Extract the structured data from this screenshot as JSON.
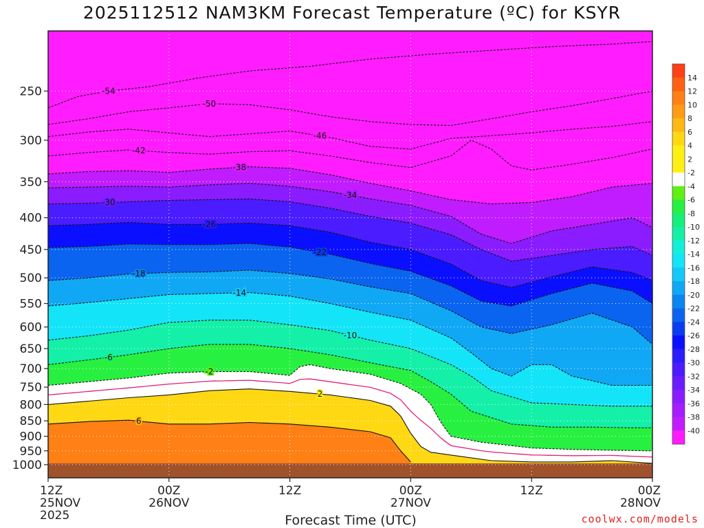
{
  "chart_data": {
    "type": "heatmap",
    "title": "2025112512 NAM3KM Forecast Temperature (ºC) for KSYR",
    "xlabel": "Forecast Time (UTC)",
    "ylabel": "",
    "credit": "coolwx.com/models",
    "y_axis": {
      "quantity": "pressure (hPa)",
      "log_scale": true,
      "range": [
        1050,
        200
      ],
      "ticks": [
        250,
        300,
        350,
        400,
        450,
        500,
        550,
        600,
        650,
        700,
        750,
        800,
        850,
        900,
        950,
        1000
      ]
    },
    "x_axis": {
      "range_hours": [
        0,
        60
      ],
      "ticks": [
        {
          "hour": 0,
          "lines": [
            "12Z",
            "25NOV",
            "2025"
          ]
        },
        {
          "hour": 12,
          "lines": [
            "00Z",
            "26NOV"
          ]
        },
        {
          "hour": 24,
          "lines": [
            "12Z"
          ]
        },
        {
          "hour": 36,
          "lines": [
            "00Z",
            "27NOV"
          ]
        },
        {
          "hour": 48,
          "lines": [
            "12Z"
          ]
        },
        {
          "hour": 60,
          "lines": [
            "00Z",
            "28NOV"
          ]
        }
      ]
    },
    "grid": true,
    "colorbar": {
      "placement": "right",
      "labels": [
        "14",
        "12",
        "10",
        "8",
        "6",
        "4",
        "2",
        "-2",
        "-4",
        "-6",
        "-8",
        "-10",
        "-12",
        "-14",
        "-16",
        "-18",
        "-20",
        "-22",
        "-24",
        "-26",
        "-28",
        "-30",
        "-32",
        "-34",
        "-36",
        "-38",
        "-40"
      ]
    },
    "contours_C": [
      -54,
      -50,
      -46,
      -42,
      -38,
      -34,
      -30,
      -26,
      -22,
      -18,
      -14,
      -10,
      -6,
      -2,
      2,
      6
    ],
    "isotherms": [
      {
        "temp": -54,
        "p": [
          [
            0,
            266
          ],
          [
            3,
            255
          ],
          [
            6,
            250
          ],
          [
            10,
            246
          ],
          [
            15,
            238
          ],
          [
            20,
            232
          ],
          [
            26,
            228
          ],
          [
            32,
            222
          ],
          [
            38,
            218
          ],
          [
            44,
            215
          ],
          [
            50,
            212
          ],
          [
            56,
            210
          ],
          [
            60,
            208
          ]
        ]
      },
      {
        "temp": -50,
        "p": [
          [
            0,
            283
          ],
          [
            4,
            277
          ],
          [
            8,
            270
          ],
          [
            12,
            266
          ],
          [
            16,
            262
          ],
          [
            20,
            263
          ],
          [
            24,
            268
          ],
          [
            28,
            275
          ],
          [
            32,
            280
          ],
          [
            36,
            283
          ],
          [
            40,
            284
          ],
          [
            44,
            277
          ],
          [
            48,
            270
          ],
          [
            52,
            264
          ],
          [
            56,
            257
          ],
          [
            60,
            250
          ]
        ]
      },
      {
        "temp": -46,
        "p": [
          [
            0,
            296
          ],
          [
            4,
            291
          ],
          [
            8,
            288
          ],
          [
            12,
            292
          ],
          [
            16,
            296
          ],
          [
            20,
            293
          ],
          [
            24,
            290
          ],
          [
            28,
            297
          ],
          [
            32,
            307
          ],
          [
            36,
            310
          ],
          [
            38,
            304
          ],
          [
            40,
            298
          ],
          [
            44,
            295
          ],
          [
            48,
            292
          ],
          [
            52,
            288
          ],
          [
            56,
            285
          ],
          [
            60,
            280
          ]
        ]
      },
      {
        "temp": -42,
        "p": [
          [
            0,
            318
          ],
          [
            4,
            314
          ],
          [
            8,
            311
          ],
          [
            12,
            314
          ],
          [
            16,
            316
          ],
          [
            20,
            313
          ],
          [
            24,
            312
          ],
          [
            28,
            318
          ],
          [
            32,
            326
          ],
          [
            36,
            332
          ],
          [
            40,
            318
          ],
          [
            42,
            300
          ],
          [
            44,
            310
          ],
          [
            46,
            330
          ],
          [
            48,
            335
          ],
          [
            52,
            328
          ],
          [
            56,
            320
          ],
          [
            60,
            310
          ]
        ]
      },
      {
        "temp": -38,
        "p": [
          [
            0,
            340
          ],
          [
            4,
            337
          ],
          [
            8,
            336
          ],
          [
            12,
            338
          ],
          [
            16,
            334
          ],
          [
            20,
            331
          ],
          [
            24,
            333
          ],
          [
            28,
            341
          ],
          [
            32,
            352
          ],
          [
            36,
            362
          ],
          [
            40,
            374
          ],
          [
            44,
            380
          ],
          [
            48,
            378
          ],
          [
            52,
            370
          ],
          [
            56,
            357
          ],
          [
            60,
            352
          ]
        ]
      },
      {
        "temp": -34,
        "p": [
          [
            0,
            358
          ],
          [
            4,
            357
          ],
          [
            8,
            356
          ],
          [
            12,
            357
          ],
          [
            16,
            354
          ],
          [
            20,
            352
          ],
          [
            24,
            356
          ],
          [
            28,
            363
          ],
          [
            32,
            373
          ],
          [
            36,
            382
          ],
          [
            40,
            398
          ],
          [
            43,
            425
          ],
          [
            46,
            440
          ],
          [
            50,
            420
          ],
          [
            54,
            410
          ],
          [
            58,
            400
          ],
          [
            60,
            415
          ]
        ]
      },
      {
        "temp": -30,
        "p": [
          [
            0,
            380
          ],
          [
            4,
            379
          ],
          [
            8,
            377
          ],
          [
            12,
            375
          ],
          [
            16,
            374
          ],
          [
            20,
            373
          ],
          [
            24,
            377
          ],
          [
            28,
            386
          ],
          [
            32,
            398
          ],
          [
            36,
            408
          ],
          [
            40,
            426
          ],
          [
            43,
            450
          ],
          [
            46,
            470
          ],
          [
            50,
            460
          ],
          [
            54,
            450
          ],
          [
            58,
            445
          ],
          [
            60,
            460
          ]
        ]
      },
      {
        "temp": -26,
        "p": [
          [
            0,
            412
          ],
          [
            4,
            410
          ],
          [
            8,
            407
          ],
          [
            12,
            410
          ],
          [
            16,
            410
          ],
          [
            20,
            408
          ],
          [
            24,
            412
          ],
          [
            28,
            422
          ],
          [
            32,
            438
          ],
          [
            36,
            450
          ],
          [
            40,
            475
          ],
          [
            43,
            505
          ],
          [
            46,
            518
          ],
          [
            50,
            498
          ],
          [
            54,
            480
          ],
          [
            58,
            490
          ],
          [
            60,
            505
          ]
        ]
      },
      {
        "temp": -22,
        "p": [
          [
            0,
            447
          ],
          [
            4,
            445
          ],
          [
            8,
            441
          ],
          [
            12,
            442
          ],
          [
            16,
            442
          ],
          [
            20,
            440
          ],
          [
            24,
            446
          ],
          [
            28,
            458
          ],
          [
            32,
            474
          ],
          [
            36,
            488
          ],
          [
            40,
            515
          ],
          [
            43,
            545
          ],
          [
            46,
            555
          ],
          [
            50,
            530
          ],
          [
            54,
            510
          ],
          [
            58,
            525
          ],
          [
            60,
            550
          ]
        ]
      },
      {
        "temp": -18,
        "p": [
          [
            0,
            505
          ],
          [
            4,
            500
          ],
          [
            8,
            493
          ],
          [
            12,
            490
          ],
          [
            16,
            489
          ],
          [
            20,
            486
          ],
          [
            24,
            492
          ],
          [
            28,
            502
          ],
          [
            32,
            517
          ],
          [
            36,
            530
          ],
          [
            40,
            565
          ],
          [
            43,
            600
          ],
          [
            46,
            615
          ],
          [
            50,
            595
          ],
          [
            54,
            570
          ],
          [
            58,
            600
          ],
          [
            60,
            640
          ]
        ]
      },
      {
        "temp": -14,
        "p": [
          [
            0,
            555
          ],
          [
            4,
            548
          ],
          [
            8,
            540
          ],
          [
            12,
            532
          ],
          [
            16,
            530
          ],
          [
            20,
            528
          ],
          [
            24,
            535
          ],
          [
            28,
            550
          ],
          [
            32,
            568
          ],
          [
            36,
            585
          ],
          [
            40,
            625
          ],
          [
            42,
            660
          ],
          [
            44,
            700
          ],
          [
            46,
            720
          ],
          [
            48,
            690
          ],
          [
            50,
            690
          ],
          [
            52,
            720
          ],
          [
            56,
            745
          ],
          [
            60,
            745
          ]
        ]
      },
      {
        "temp": -10,
        "p": [
          [
            0,
            630
          ],
          [
            4,
            620
          ],
          [
            8,
            607
          ],
          [
            12,
            590
          ],
          [
            16,
            585
          ],
          [
            20,
            585
          ],
          [
            24,
            595
          ],
          [
            28,
            608
          ],
          [
            32,
            630
          ],
          [
            36,
            650
          ],
          [
            40,
            690
          ],
          [
            42,
            720
          ],
          [
            44,
            760
          ],
          [
            48,
            795
          ],
          [
            52,
            800
          ],
          [
            56,
            805
          ],
          [
            60,
            805
          ]
        ]
      },
      {
        "temp": -6,
        "p": [
          [
            0,
            690
          ],
          [
            4,
            678
          ],
          [
            8,
            665
          ],
          [
            12,
            650
          ],
          [
            16,
            640
          ],
          [
            20,
            640
          ],
          [
            24,
            650
          ],
          [
            28,
            665
          ],
          [
            32,
            685
          ],
          [
            36,
            705
          ],
          [
            38,
            735
          ],
          [
            40,
            770
          ],
          [
            42,
            820
          ],
          [
            46,
            860
          ],
          [
            50,
            870
          ],
          [
            54,
            870
          ],
          [
            58,
            872
          ],
          [
            60,
            872
          ]
        ]
      },
      {
        "temp": -2,
        "p": [
          [
            0,
            745
          ],
          [
            4,
            735
          ],
          [
            8,
            725
          ],
          [
            12,
            712
          ],
          [
            16,
            708
          ],
          [
            20,
            708
          ],
          [
            24,
            718
          ],
          [
            25,
            695
          ],
          [
            26,
            690
          ],
          [
            28,
            700
          ],
          [
            32,
            715
          ],
          [
            35,
            740
          ],
          [
            37,
            770
          ],
          [
            38,
            800
          ],
          [
            39,
            855
          ],
          [
            40,
            900
          ],
          [
            43,
            920
          ],
          [
            48,
            940
          ],
          [
            52,
            945
          ],
          [
            56,
            948
          ],
          [
            60,
            950
          ]
        ]
      },
      {
        "temp": 2,
        "p": [
          [
            0,
            800
          ],
          [
            4,
            790
          ],
          [
            8,
            780
          ],
          [
            12,
            772
          ],
          [
            16,
            760
          ],
          [
            20,
            755
          ],
          [
            24,
            762
          ],
          [
            28,
            772
          ],
          [
            32,
            788
          ],
          [
            34,
            805
          ],
          [
            35,
            835
          ],
          [
            36,
            890
          ],
          [
            37,
            935
          ],
          [
            38,
            955
          ],
          [
            40,
            965
          ],
          [
            44,
            985
          ],
          [
            48,
            990
          ],
          [
            52,
            990
          ],
          [
            56,
            985
          ],
          [
            60,
            995
          ]
        ]
      },
      {
        "temp": 6,
        "p": [
          [
            0,
            860
          ],
          [
            4,
            852
          ],
          [
            8,
            848
          ],
          [
            12,
            860
          ],
          [
            16,
            860
          ],
          [
            20,
            855
          ],
          [
            24,
            860
          ],
          [
            28,
            870
          ],
          [
            32,
            885
          ],
          [
            34,
            905
          ],
          [
            35,
            950
          ],
          [
            36,
            990
          ]
        ]
      }
    ]
  }
}
